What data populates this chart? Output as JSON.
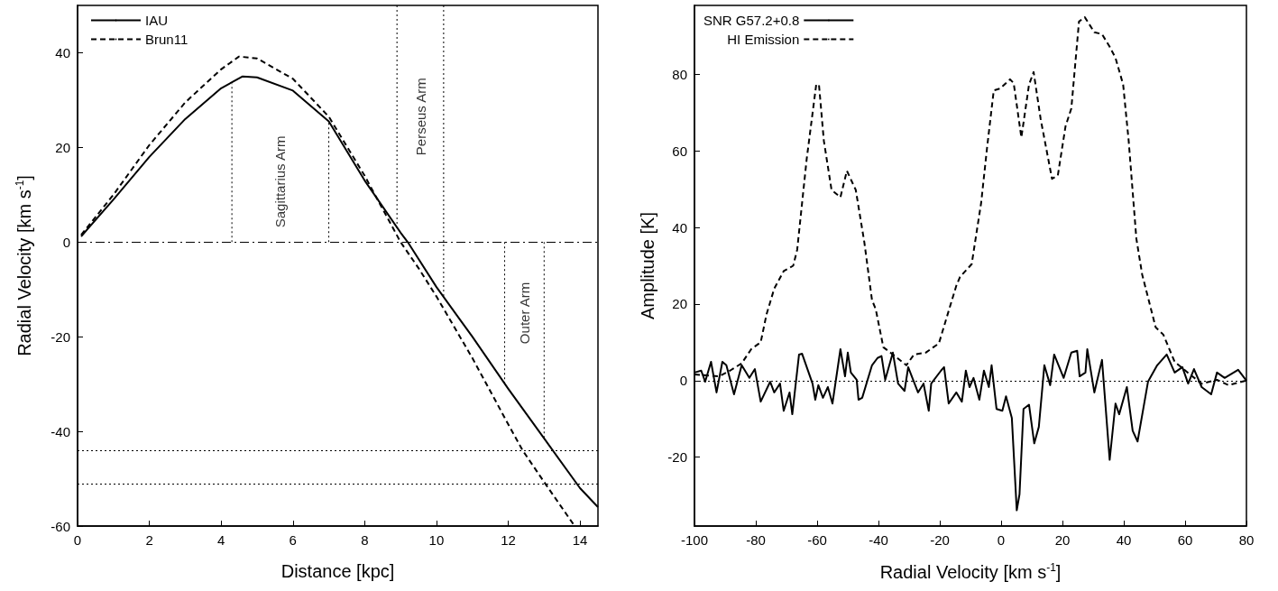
{
  "chart_data": [
    {
      "type": "line",
      "xlabel": "Distance [kpc]",
      "ylabel": "Radial Velocity [km s$^{-1}$]",
      "xlim": [
        0,
        14.5
      ],
      "xticks": [
        0,
        2,
        4,
        6,
        8,
        10,
        12,
        14
      ],
      "ylim": [
        -60,
        50
      ],
      "yticks": [
        -60,
        -40,
        -20,
        0,
        20,
        40
      ],
      "grid": false,
      "legend": "top left",
      "marker": "none",
      "series": [
        {
          "name": "IAU",
          "color": "#000000",
          "line_style": "solid",
          "x": [
            0.1,
            1,
            2,
            3,
            4,
            4.6,
            5,
            6,
            7,
            8,
            9,
            9.2,
            10,
            11,
            12,
            13,
            14,
            14.5
          ],
          "values": [
            1.2,
            9,
            18,
            26,
            32.5,
            35,
            34.8,
            32,
            25.5,
            13,
            2,
            0,
            -9.5,
            -20,
            -31,
            -41.5,
            -52,
            -56
          ]
        },
        {
          "name": "Brun11",
          "color": "#000000",
          "line_style": "dashed",
          "x": [
            0.1,
            1,
            2,
            3,
            4,
            4.5,
            5,
            6,
            7,
            8,
            9,
            9.5,
            10,
            11,
            12,
            12.4,
            13,
            13.85
          ],
          "values": [
            1.5,
            10,
            20.5,
            29.5,
            36.5,
            39.2,
            38.8,
            34.5,
            26.5,
            14,
            0,
            -5.5,
            -11.5,
            -24.5,
            -38.5,
            -44,
            -50.7,
            -60
          ]
        },
        {
          "color": "#000000",
          "line_style": "dotted",
          "x": [
            4.3,
            4.3
          ],
          "values": [
            0,
            33.5
          ]
        },
        {
          "color": "#000000",
          "line_style": "dotted",
          "x": [
            7.0,
            7.0
          ],
          "values": [
            0,
            25.5
          ]
        },
        {
          "color": "#000000",
          "line_style": "dotted",
          "x": [
            8.9,
            8.9
          ],
          "values": [
            50,
            3
          ]
        },
        {
          "color": "#000000",
          "line_style": "dotted",
          "x": [
            10.2,
            10.2
          ],
          "values": [
            50,
            -11.5
          ]
        },
        {
          "color": "#000000",
          "line_style": "dotted",
          "x": [
            11.9,
            11.9
          ],
          "values": [
            0,
            -30
          ]
        },
        {
          "color": "#000000",
          "line_style": "dotted",
          "x": [
            13.0,
            13.0
          ],
          "values": [
            0,
            -41.5
          ]
        }
      ],
      "ref_lines": [
        {
          "axis": "y",
          "value": 0,
          "line_style": "dashed"
        },
        {
          "axis": "y",
          "value": -44,
          "line_style": "dotted"
        },
        {
          "axis": "y",
          "value": -51,
          "line_style": "dotted"
        }
      ],
      "annotations": [
        "Sagittarius Arm",
        "Perseus Arm",
        "Outer Arm"
      ]
    },
    {
      "type": "line",
      "xlabel": "Radial Velocity [km s$^{-1}$]",
      "ylabel": "Amplitude [K]",
      "xlim": [
        -100,
        80
      ],
      "xticks": [
        -100,
        -80,
        -60,
        -40,
        -20,
        0,
        20,
        40,
        60,
        80
      ],
      "ylim": [
        -38,
        98
      ],
      "yticks": [
        -20,
        0,
        20,
        40,
        60,
        80
      ],
      "grid": false,
      "legend": "top left",
      "marker": "none",
      "series": [
        {
          "name": "SNR G57.2+0.8",
          "color": "#000000",
          "line_style": "solid",
          "x": [
            -100,
            -97.8,
            -96.5,
            -94.6,
            -92.8,
            -90.9,
            -89.6,
            -87.1,
            -84.6,
            -82.1,
            -80.3,
            -78.4,
            -75.3,
            -74,
            -72.1,
            -70.9,
            -69,
            -68.1,
            -65.9,
            -64.9,
            -61.5,
            -60.6,
            -59.6,
            -58.1,
            -56.5,
            -55,
            -52.4,
            -50.9,
            -50,
            -49,
            -47.1,
            -46.5,
            -45.3,
            -42.1,
            -40.3,
            -39,
            -37.8,
            -35.3,
            -33.6,
            -31.5,
            -30.3,
            -27.1,
            -25.3,
            -23.6,
            -22.8,
            -19.6,
            -18.6,
            -17.1,
            -14.6,
            -12.8,
            -11.5,
            -10.3,
            -9,
            -7.1,
            -5.6,
            -4,
            -3.1,
            -1.5,
            0.4,
            1.6,
            3.5,
            5.1,
            6,
            7.3,
            9.1,
            10.8,
            12.3,
            14.1,
            16,
            17.3,
            20.4,
            22.9,
            24.8,
            25.6,
            27.5,
            28.1,
            30.4,
            32.9,
            35.4,
            37.3,
            38.5,
            41,
            42.9,
            44.5,
            47.9,
            50.9,
            54,
            56.6,
            59.1,
            61,
            62.9,
            65.4,
            68.5,
            70.4,
            72.9,
            77.3,
            80
          ],
          "values": [
            2.1,
            2.6,
            -0.3,
            4.9,
            -3.1,
            4.9,
            4,
            -3.6,
            4,
            0.7,
            3,
            -5.5,
            -0.3,
            -3.1,
            -0.8,
            -7.9,
            -3.1,
            -8.8,
            6.8,
            7,
            -0.8,
            -5,
            -1.2,
            -4.5,
            -1.7,
            -6,
            8.2,
            1.1,
            7.3,
            2.1,
            0.2,
            -5,
            -4.5,
            4,
            5.9,
            6.4,
            0.2,
            7.3,
            -0.8,
            -2.7,
            3.5,
            -3.1,
            -0.8,
            -7.9,
            -0.8,
            2.6,
            3.5,
            -6,
            -3.1,
            -5.5,
            2.6,
            -1.7,
            0.7,
            -5,
            2.6,
            -1.7,
            4,
            -7.4,
            -7.9,
            -4.1,
            -9.8,
            -33.9,
            -29.7,
            -7.4,
            -6.3,
            -16.4,
            -12.1,
            4,
            -1.2,
            6.8,
            0.7,
            7.3,
            7.8,
            1.1,
            2.1,
            8.2,
            -3.1,
            5.4,
            -20.7,
            -6,
            -8.8,
            -1.7,
            -13.1,
            -15.9,
            -0.3,
            4,
            6.8,
            2.1,
            3.5,
            -0.8,
            3,
            -1.7,
            -3.6,
            2.1,
            0.7,
            2.8,
            0
          ]
        },
        {
          "name": "HI Emission",
          "color": "#000000",
          "line_style": "dashed",
          "x": [
            -100,
            -92,
            -88.4,
            -84.6,
            -81.5,
            -78.4,
            -76.5,
            -74,
            -70.9,
            -67.8,
            -66.5,
            -63.4,
            -60.3,
            -59.4,
            -57.8,
            -55.3,
            -52.4,
            -50.3,
            -47.4,
            -44.6,
            -42.1,
            -40.9,
            -38.4,
            -34.6,
            -30.9,
            -28.4,
            -24.6,
            -20.3,
            -17.1,
            -14.6,
            -13.4,
            -9.6,
            -6.5,
            -4.6,
            -2.4,
            -0.3,
            2.9,
            4.1,
            6.6,
            9.1,
            10.6,
            12.9,
            16.6,
            18.5,
            21,
            22.9,
            25.4,
            27.3,
            30.4,
            32.9,
            35.4,
            37.3,
            39.8,
            41.6,
            44.1,
            46,
            50.4,
            52.9,
            56.6,
            61.6,
            65.4,
            70.4,
            74.1,
            80
          ],
          "values": [
            1.6,
            1.1,
            2.6,
            4.5,
            8.2,
            10,
            17.3,
            24,
            28.6,
            30,
            34.2,
            57.9,
            77.3,
            77.3,
            62.6,
            49.8,
            47.9,
            54.8,
            49.8,
            36.1,
            21,
            18.7,
            8.7,
            6.4,
            4,
            6.8,
            7.3,
            9.7,
            18.2,
            24.8,
            27.1,
            30.4,
            46.5,
            60.7,
            75.8,
            76.3,
            78.7,
            77.7,
            63.5,
            77.3,
            80.6,
            68.3,
            52.7,
            53.6,
            66.4,
            71.1,
            93.8,
            94.9,
            91,
            90.5,
            87.2,
            84.3,
            77.3,
            62.6,
            37.1,
            27.7,
            13.9,
            12,
            4.9,
            1.6,
            -0.8,
            0.2,
            -1.2,
            0
          ]
        }
      ],
      "ref_lines": [
        {
          "axis": "y",
          "value": 0,
          "line_style": "dotted"
        }
      ]
    }
  ]
}
